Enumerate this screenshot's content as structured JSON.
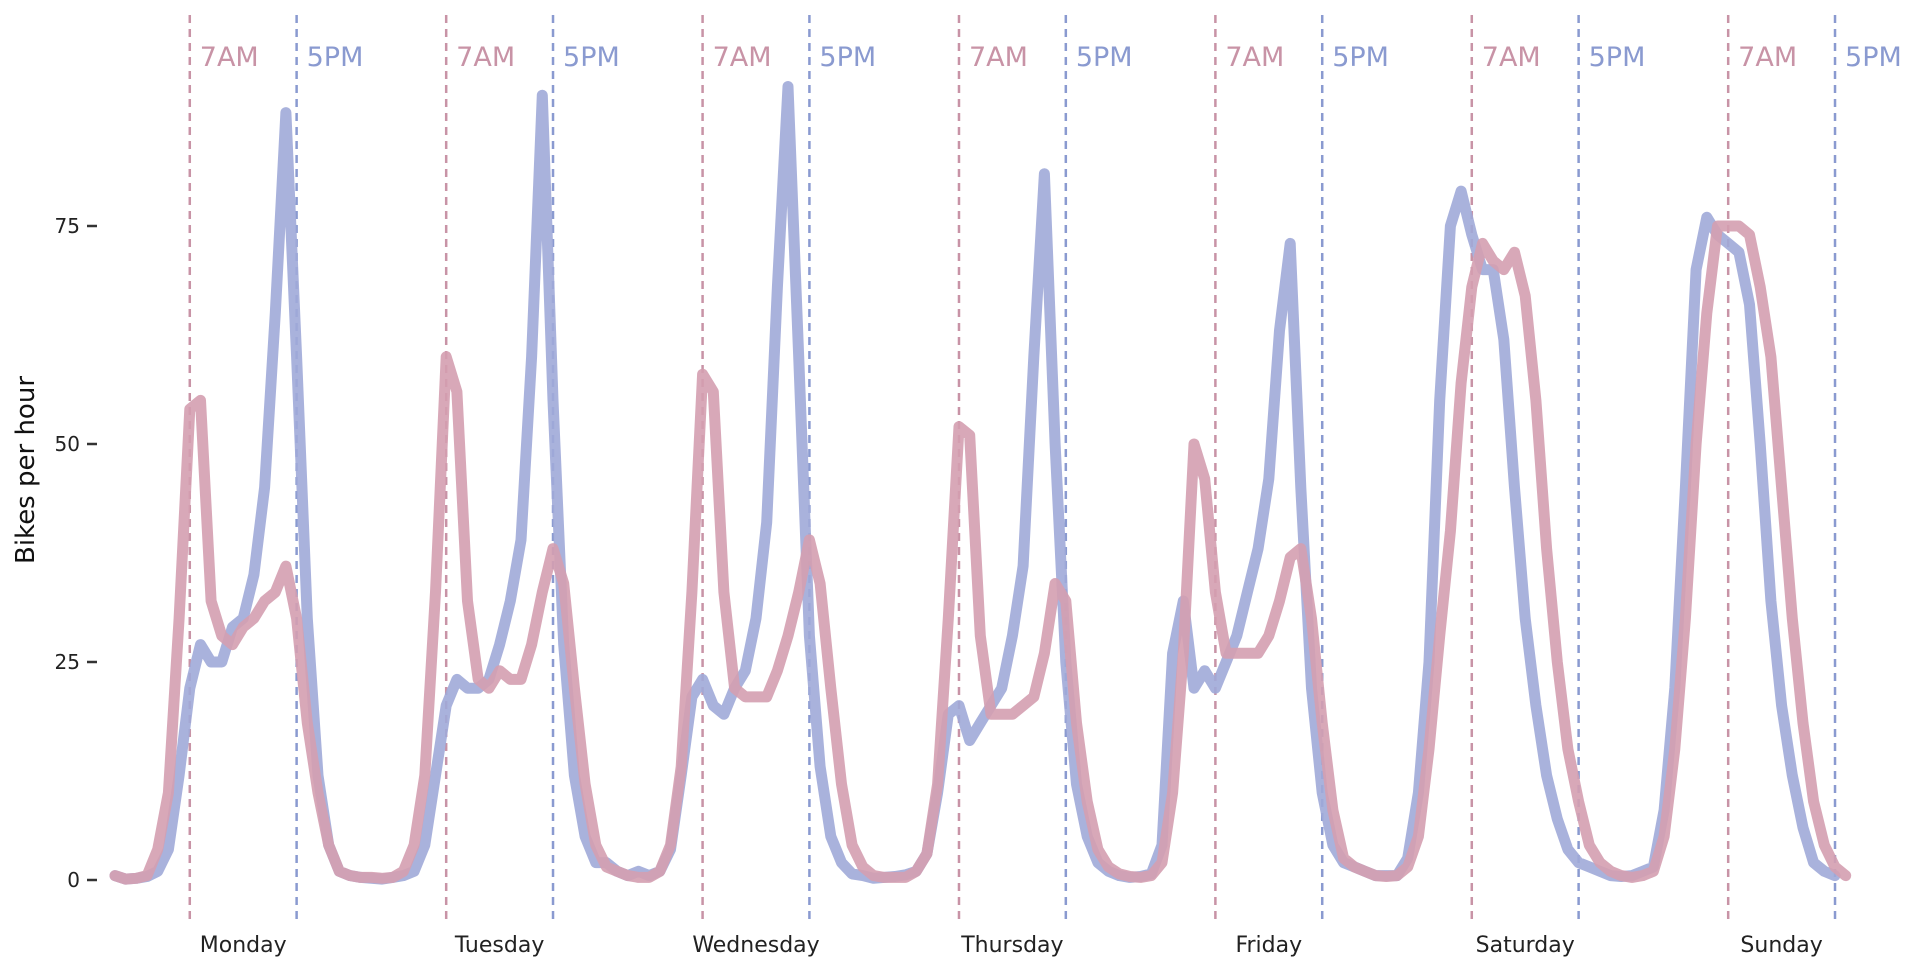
{
  "chart_data": {
    "type": "line",
    "title": "",
    "xlabel": "",
    "ylabel": "Bikes per hour",
    "ylim": [
      0,
      100
    ],
    "yticks": [
      0,
      25,
      50,
      75
    ],
    "grid": false,
    "legend": "none",
    "days": [
      "Monday",
      "Tuesday",
      "Wednesday",
      "Thursday",
      "Friday",
      "Saturday",
      "Sunday"
    ],
    "markers": [
      {
        "label": "7AM",
        "hour": 7,
        "color": "#c893a6"
      },
      {
        "label": "5PM",
        "hour": 17,
        "color": "#8a9ad0"
      }
    ],
    "series": [
      {
        "color": "#a0aad8",
        "values": [
          [
            0.5,
            0.1,
            0.2,
            0.4,
            1.0,
            3.5,
            12,
            22,
            27,
            25,
            25,
            29,
            30,
            35,
            45,
            65,
            88,
            60,
            30,
            12,
            4,
            1,
            0.5,
            0.3
          ],
          [
            0.2,
            0.1,
            0.3,
            0.5,
            1.0,
            4.0,
            12,
            20,
            23,
            22,
            22,
            23,
            27,
            32,
            39,
            60,
            90,
            55,
            27,
            12,
            5,
            2,
            2,
            1
          ],
          [
            0.5,
            1,
            0.5,
            1,
            3.5,
            12,
            21,
            23,
            20,
            19,
            22,
            24,
            30,
            41,
            68,
            91,
            60,
            28,
            13,
            5,
            2,
            0.7,
            0.5,
            0.2
          ],
          [
            0.3,
            0.4,
            0.6,
            1,
            3,
            10,
            19,
            20,
            16,
            18,
            20,
            22,
            28,
            36,
            60,
            81,
            50,
            25,
            11,
            5,
            2,
            1,
            0.5,
            0.3
          ],
          [
            0.4,
            0.7,
            4,
            26,
            32,
            22,
            24,
            22,
            25,
            28,
            33,
            38,
            46,
            63,
            73,
            45,
            22,
            10,
            4,
            2,
            1.5,
            1,
            0.5,
            0.5
          ],
          [
            0.5,
            2.5,
            10,
            25,
            55,
            75,
            79,
            74,
            70,
            70,
            62,
            45,
            30,
            20,
            12,
            7,
            3.5,
            2,
            1.5,
            1,
            0.5,
            0.4,
            0.5,
            1
          ],
          [
            1.5,
            8,
            22,
            45,
            70,
            76,
            74,
            73,
            72,
            66,
            50,
            32,
            20,
            12,
            6,
            2,
            1,
            0.5
          ]
        ]
      },
      {
        "color": "#d49eb0",
        "values": [
          [
            0.5,
            0.1,
            0.2,
            0.5,
            3.5,
            10,
            30,
            54,
            55,
            32,
            28,
            27,
            29,
            30,
            32,
            33,
            36,
            30,
            18,
            10,
            4,
            1,
            0.5,
            0.3
          ],
          [
            0.3,
            0.2,
            0.3,
            1,
            4,
            12,
            33,
            60,
            56,
            32,
            23,
            22,
            24,
            23,
            23,
            27,
            33,
            38,
            34,
            22,
            11,
            4,
            1.5,
            1
          ],
          [
            0.5,
            0.3,
            0.3,
            1,
            4,
            13,
            33,
            58,
            56,
            33,
            22,
            21,
            21,
            21,
            24,
            28,
            33,
            39,
            34,
            22,
            11,
            4,
            1.5,
            0.5
          ],
          [
            0.3,
            0.3,
            0.3,
            1,
            3,
            11,
            30,
            52,
            51,
            28,
            19,
            19,
            19,
            20,
            21,
            26,
            34,
            32,
            18,
            9,
            3.5,
            1.5,
            0.7,
            0.4
          ],
          [
            0.3,
            0.5,
            2,
            10,
            26,
            50,
            46,
            33,
            26,
            26,
            26,
            26,
            28,
            32,
            37,
            38,
            30,
            18,
            8,
            2.5,
            1.5,
            1,
            0.5,
            0.4
          ],
          [
            0.5,
            1.5,
            5,
            15,
            28,
            40,
            57,
            68,
            73,
            71,
            70,
            72,
            67,
            55,
            38,
            25,
            15,
            9,
            4,
            2,
            1,
            0.5,
            0.3,
            0.5
          ],
          [
            1,
            5,
            15,
            30,
            50,
            65,
            75,
            75,
            75,
            74,
            68,
            60,
            45,
            30,
            18,
            9,
            4,
            1.5,
            0.5
          ]
        ]
      }
    ]
  }
}
